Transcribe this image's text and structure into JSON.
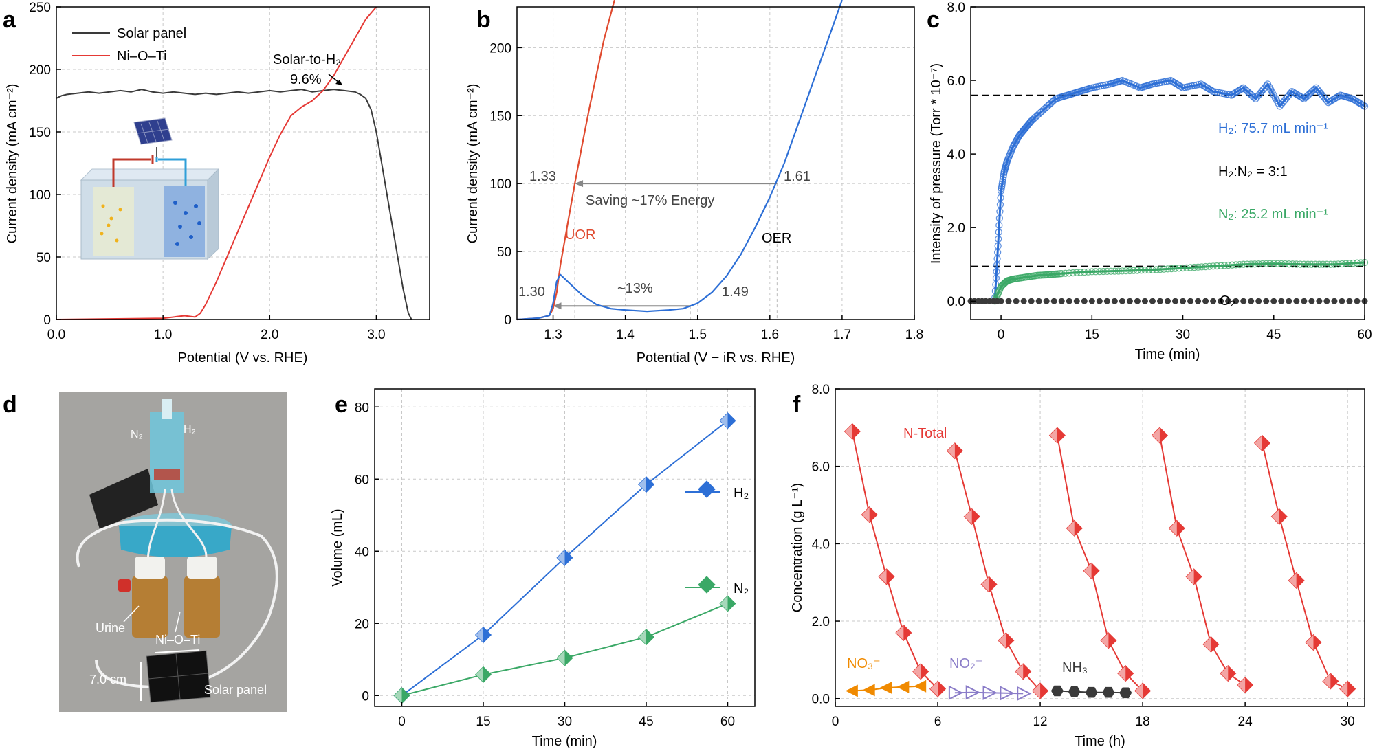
{
  "colors": {
    "black": "#3a3a3a",
    "red": "#e53935",
    "blue": "#2d6fd6",
    "green": "#3aa866",
    "orange": "#f08a00",
    "purple": "#8a7cc8",
    "dark": "#3a3a3a",
    "gray": "#888888"
  },
  "chart_data": [
    {
      "panel": "a",
      "type": "line",
      "xlabel": "Potential (V vs. RHE)",
      "ylabel": "Current density (mA cm⁻²)",
      "xlim": [
        0,
        3.5
      ],
      "ylim": [
        0,
        250
      ],
      "xticks": [
        "0.0",
        "1.0",
        "2.0",
        "3.0"
      ],
      "yticks": [
        "0",
        "50",
        "100",
        "150",
        "200",
        "250"
      ],
      "legend": [
        "Solar panel",
        "Ni–O–Ti"
      ],
      "annotations": {
        "solar_to_h2": "Solar-to-H₂",
        "efficiency": "9.6%"
      },
      "series": [
        {
          "name": "Solar panel",
          "color": "#3a3a3a",
          "x": [
            0,
            0.05,
            0.1,
            0.2,
            0.3,
            0.4,
            0.5,
            0.6,
            0.7,
            0.8,
            0.9,
            1.0,
            1.1,
            1.2,
            1.3,
            1.4,
            1.5,
            1.6,
            1.7,
            1.8,
            1.9,
            2.0,
            2.1,
            2.2,
            2.3,
            2.4,
            2.5,
            2.6,
            2.7,
            2.8,
            2.85,
            2.9,
            2.95,
            3.0,
            3.05,
            3.1,
            3.15,
            3.2,
            3.25,
            3.3,
            3.33
          ],
          "y": [
            177,
            179,
            180,
            181,
            182,
            181,
            182,
            183,
            182,
            184,
            182,
            181,
            182,
            181,
            180,
            181,
            180,
            181,
            182,
            181,
            182,
            183,
            182,
            183,
            184,
            182,
            183,
            184,
            183,
            182,
            180,
            177,
            168,
            150,
            125,
            100,
            75,
            50,
            25,
            5,
            0
          ]
        },
        {
          "name": "Ni–O–Ti",
          "color": "#e53935",
          "x": [
            0,
            0.5,
            1.0,
            1.2,
            1.3,
            1.35,
            1.4,
            1.5,
            1.6,
            1.7,
            1.8,
            1.9,
            2.0,
            2.1,
            2.2,
            2.3,
            2.4,
            2.5,
            2.6,
            2.7,
            2.8,
            2.9,
            3.0
          ],
          "y": [
            0,
            0.5,
            1,
            3,
            2,
            5,
            12,
            30,
            50,
            70,
            90,
            110,
            130,
            148,
            163,
            170,
            175,
            183,
            195,
            210,
            225,
            240,
            250
          ]
        }
      ]
    },
    {
      "panel": "b",
      "type": "line",
      "xlabel": "Potential (V − iR vs. RHE)",
      "ylabel": "Current density (mA cm⁻²)",
      "xlim": [
        1.25,
        1.8
      ],
      "ylim": [
        0,
        230
      ],
      "xticks": [
        "1.3",
        "1.4",
        "1.5",
        "1.6",
        "1.7",
        "1.8"
      ],
      "yticks": [
        "0",
        "50",
        "100",
        "150",
        "200"
      ],
      "annotations": {
        "uor_100": "1.33",
        "oer_100": "1.61",
        "saving": "Saving ~17% Energy",
        "uor_10": "1.30",
        "oer_10": "1.49",
        "delta": "~13%",
        "uor": "UOR",
        "oer": "OER"
      },
      "series": [
        {
          "name": "UOR",
          "color": "#e04a2f",
          "x": [
            1.25,
            1.28,
            1.295,
            1.3,
            1.305,
            1.31,
            1.32,
            1.33,
            1.34,
            1.35,
            1.36,
            1.37,
            1.38,
            1.385
          ],
          "y": [
            0,
            1,
            3,
            8,
            20,
            40,
            70,
            100,
            128,
            155,
            180,
            205,
            225,
            235
          ]
        },
        {
          "name": "OER",
          "color": "#2d6fd6",
          "x": [
            1.25,
            1.28,
            1.295,
            1.3,
            1.305,
            1.31,
            1.32,
            1.34,
            1.36,
            1.38,
            1.4,
            1.43,
            1.46,
            1.48,
            1.5,
            1.52,
            1.54,
            1.56,
            1.58,
            1.6,
            1.62,
            1.64,
            1.66,
            1.68,
            1.69,
            1.7
          ],
          "y": [
            0,
            1,
            3,
            12,
            28,
            33,
            28,
            18,
            11,
            8,
            7,
            6,
            7,
            8,
            12,
            20,
            32,
            48,
            68,
            90,
            115,
            145,
            175,
            205,
            220,
            235
          ]
        }
      ]
    },
    {
      "panel": "c",
      "type": "scatter",
      "xlabel": "Time (min)",
      "ylabel": "Intensity of pressure (Torr * 10⁻⁷)",
      "xlim": [
        -5,
        60
      ],
      "ylim": [
        -0.5,
        8
      ],
      "xticks": [
        "0",
        "15",
        "30",
        "45",
        "60"
      ],
      "yticks": [
        "0.0",
        "2.0",
        "4.0",
        "6.0",
        "8.0"
      ],
      "annotations": {
        "h2_rate": "H₂: 75.7 mL min⁻¹",
        "ratio": "H₂:N₂ = 3:1",
        "n2_rate": "N₂: 25.2 mL min⁻¹",
        "o2": "O₂"
      },
      "reference_lines": [
        5.6,
        0.95
      ],
      "series": [
        {
          "name": "H₂",
          "color": "#2d6fd6",
          "x": [
            -1,
            -0.5,
            0,
            0.5,
            1,
            2,
            3,
            4,
            5,
            7,
            9,
            11,
            13,
            15,
            18,
            20,
            23,
            25,
            28,
            30,
            33,
            35,
            38,
            40,
            42,
            44,
            46,
            48,
            50,
            52,
            54,
            56,
            58,
            60
          ],
          "y": [
            0.1,
            1.5,
            3.0,
            3.5,
            3.8,
            4.2,
            4.5,
            4.7,
            4.9,
            5.2,
            5.5,
            5.6,
            5.7,
            5.8,
            5.9,
            6.0,
            5.8,
            5.9,
            6.0,
            5.8,
            5.9,
            5.7,
            5.6,
            5.8,
            5.5,
            5.9,
            5.3,
            5.7,
            5.5,
            5.8,
            5.4,
            5.6,
            5.5,
            5.3
          ]
        },
        {
          "name": "N₂",
          "color": "#3aa866",
          "x": [
            -1,
            0,
            1,
            2,
            4,
            6,
            8,
            10,
            15,
            20,
            25,
            30,
            35,
            40,
            45,
            50,
            55,
            60
          ],
          "y": [
            0,
            0.4,
            0.55,
            0.6,
            0.65,
            0.7,
            0.72,
            0.75,
            0.8,
            0.82,
            0.85,
            0.9,
            0.95,
            1.0,
            1.02,
            1.0,
            1.0,
            1.05
          ]
        },
        {
          "name": "O₂",
          "color": "#3a3a3a",
          "x": [
            -5,
            0,
            10,
            20,
            30,
            40,
            50,
            60
          ],
          "y": [
            0,
            0,
            0,
            0,
            0,
            0,
            0,
            0
          ]
        }
      ]
    },
    {
      "panel": "e",
      "type": "line",
      "xlabel": "Time (min)",
      "ylabel": "Volume (mL)",
      "xlim": [
        -5,
        65
      ],
      "ylim": [
        -3,
        85
      ],
      "xticks": [
        "0",
        "15",
        "30",
        "45",
        "60"
      ],
      "yticks": [
        "0",
        "20",
        "40",
        "60",
        "80"
      ],
      "legend": [
        "H₂",
        "N₂"
      ],
      "series": [
        {
          "name": "H₂",
          "color": "#2d6fd6",
          "x": [
            0,
            15,
            30,
            45,
            60
          ],
          "y": [
            0,
            16.8,
            38.2,
            58.5,
            76.2
          ]
        },
        {
          "name": "N₂",
          "color": "#3aa866",
          "x": [
            0,
            15,
            30,
            45,
            60
          ],
          "y": [
            0,
            5.8,
            10.4,
            16.2,
            25.5
          ]
        }
      ]
    },
    {
      "panel": "f",
      "type": "line",
      "xlabel": "Time (h)",
      "ylabel": "Concentration (g L⁻¹)",
      "xlim": [
        0,
        31
      ],
      "ylim": [
        -0.2,
        8
      ],
      "xticks": [
        "0",
        "6",
        "12",
        "18",
        "24",
        "30"
      ],
      "yticks": [
        "0.0",
        "2.0",
        "4.0",
        "6.0",
        "8.0"
      ],
      "annotations": {
        "total": "N-Total",
        "no3": "NO₃⁻",
        "no2": "NO₂⁻",
        "nh3": "NH₃"
      },
      "series": [
        {
          "name": "N-Total cycle 1",
          "color": "#e53935",
          "x": [
            1,
            2,
            3,
            4,
            5,
            6
          ],
          "y": [
            6.9,
            4.75,
            3.15,
            1.7,
            0.7,
            0.25
          ]
        },
        {
          "name": "N-Total cycle 2",
          "color": "#e53935",
          "x": [
            7,
            8,
            9,
            10,
            11,
            12
          ],
          "y": [
            6.4,
            4.7,
            2.95,
            1.5,
            0.7,
            0.2
          ]
        },
        {
          "name": "N-Total cycle 3",
          "color": "#e53935",
          "x": [
            13,
            14,
            15,
            16,
            17,
            18
          ],
          "y": [
            6.8,
            4.4,
            3.3,
            1.5,
            0.65,
            0.2
          ]
        },
        {
          "name": "N-Total cycle 4",
          "color": "#e53935",
          "x": [
            19,
            20,
            21,
            22,
            23,
            24
          ],
          "y": [
            6.8,
            4.4,
            3.15,
            1.4,
            0.65,
            0.35
          ]
        },
        {
          "name": "N-Total cycle 5",
          "color": "#e53935",
          "x": [
            25,
            26,
            27,
            28,
            29,
            30
          ],
          "y": [
            6.6,
            4.7,
            3.05,
            1.45,
            0.45,
            0.25
          ]
        },
        {
          "name": "NO₃⁻",
          "color": "#f08a00",
          "x": [
            1,
            2,
            3,
            4,
            5
          ],
          "y": [
            0.2,
            0.22,
            0.28,
            0.3,
            0.32
          ]
        },
        {
          "name": "NO₂⁻",
          "color": "#8a7cc8",
          "x": [
            7,
            8,
            9,
            10,
            11
          ],
          "y": [
            0.15,
            0.16,
            0.15,
            0.14,
            0.13
          ]
        },
        {
          "name": "NH₃",
          "color": "#3a3a3a",
          "x": [
            13,
            14,
            15,
            16,
            17
          ],
          "y": [
            0.2,
            0.18,
            0.16,
            0.16,
            0.15
          ]
        }
      ]
    }
  ],
  "photo_d": {
    "n2": "N₂",
    "h2": "H₂",
    "urine": "Urine",
    "nioti": "Ni–O–Ti",
    "size": "7.0 cm",
    "solar": "Solar panel"
  },
  "panel_labels": [
    "a",
    "b",
    "c",
    "d",
    "e",
    "f"
  ]
}
